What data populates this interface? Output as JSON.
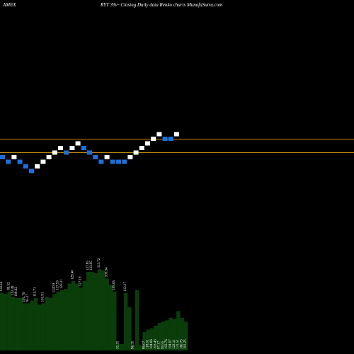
{
  "header": {
    "exchange": "AMEX",
    "title": "RYT  3%~  Closing Daily data  Renko  charts MunafaSutra.com"
  },
  "colors": {
    "background": "#000000",
    "up_brick": "#ffffff",
    "down_brick": "#1e6fd9",
    "reference_line": "#b8860b",
    "volume_bar": "#0a3d0a",
    "text": "#ffffff"
  },
  "chart_data": {
    "type": "renko",
    "brick_direction": [
      "down",
      "down",
      "up",
      "down",
      "down",
      "down",
      "up",
      "up",
      "up",
      "up",
      "up",
      "down",
      "up",
      "up",
      "down",
      "down",
      "down",
      "down",
      "up",
      "down",
      "down",
      "down",
      "up",
      "up",
      "up",
      "up",
      "up",
      "up",
      "down",
      "down",
      "up"
    ],
    "brick_level": [
      0,
      -1,
      0,
      -1,
      -2,
      -3,
      -2,
      -1,
      0,
      1,
      2,
      1,
      2,
      3,
      2,
      1,
      0,
      -1,
      0,
      -1,
      -1,
      -1,
      0,
      1,
      2,
      3,
      4,
      5,
      4,
      4,
      5
    ],
    "reference_levels": [
      "upper",
      "lower"
    ],
    "volume": {
      "values": [
        44,
        43,
        45,
        41,
        40,
        40,
        36,
        36,
        38,
        40,
        35,
        36,
        41,
        40,
        43,
        45,
        46,
        47,
        51,
        53,
        51,
        48,
        53,
        60,
        60,
        59,
        62,
        61,
        55,
        50,
        45,
        5,
        5,
        44,
        33,
        4,
        46,
        4,
        14,
        16,
        17,
        19,
        21,
        22,
        23,
        25,
        24,
        30,
        25,
        22
      ],
      "labels": [
        "114.34",
        "",
        "89.32",
        "112.49",
        "109.62",
        "",
        "101.79",
        "95.27",
        "",
        "113.71",
        "",
        "101.91",
        "",
        "",
        "124.93",
        "117.53",
        "123.21",
        "",
        "",
        "129.40",
        "",
        "127.19",
        "",
        "127.85",
        "123.95",
        "",
        "113.72",
        "",
        "103.34",
        "",
        "109.05",
        "",
        "",
        "112.17",
        "",
        "",
        "",
        "",
        "",
        "",
        "",
        "",
        "",
        "",
        "",
        "",
        "",
        "",
        "",
        ""
      ],
      "low_labels": [
        "",
        "",
        "",
        "",
        "",
        "",
        "",
        "",
        "",
        "",
        "",
        "",
        "",
        "",
        "",
        "",
        "",
        "",
        "",
        "",
        "",
        "",
        "",
        "",
        "",
        "",
        "",
        "",
        "",
        "",
        "",
        "35.15",
        "",
        "",
        "",
        "96.35",
        "",
        "",
        "86.07",
        "118.01",
        "104.66",
        "103.43",
        "97.17",
        "99.55",
        "103.76",
        "104.07",
        "122.11",
        "131.51",
        "160.75",
        "161.25"
      ]
    }
  }
}
